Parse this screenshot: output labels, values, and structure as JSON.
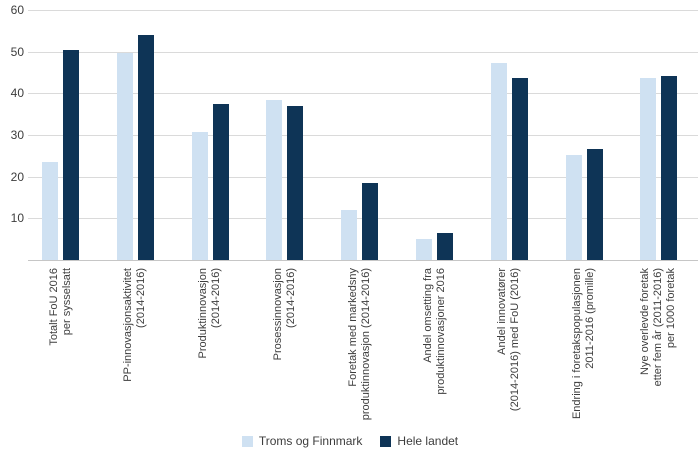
{
  "chart_data": {
    "type": "bar",
    "title": "",
    "xlabel": "",
    "ylabel": "",
    "ylim": [
      0,
      60
    ],
    "yticks": [
      10,
      20,
      30,
      40,
      50,
      60
    ],
    "grid": true,
    "legend_position": "bottom",
    "categories": [
      [
        "Totalt FoU 2016",
        "per sysselsatt"
      ],
      [
        "PP-innovasjonsaktivitet",
        "(2014-2016)"
      ],
      [
        "Produktinnovasjon",
        "(2014-2016)"
      ],
      [
        "Prosessinnovasjon",
        "(2014-2016)"
      ],
      [
        "Foretak med markedsny",
        "produktinnovasjon (2014-2016)"
      ],
      [
        "Andel omsetting fra",
        "produktinnovasjoner 2016"
      ],
      [
        "Andel innovatører",
        "(2014-2016) med FoU (2016)"
      ],
      [
        "Endring i foretakspopulasjonen",
        "2011-2016 (promille)"
      ],
      [
        "Nye overlevde foretak",
        "etter fem år (2011-2016)",
        "per 1000 foretak"
      ]
    ],
    "series": [
      {
        "name": "Troms og Finnmark",
        "color": "#cfe1f2",
        "values": [
          23.5,
          49.8,
          30.7,
          38.3,
          11.9,
          5.0,
          47.3,
          25.2,
          43.6
        ]
      },
      {
        "name": "Hele landet",
        "color": "#0e3456",
        "values": [
          50.4,
          53.9,
          37.4,
          37.0,
          18.6,
          6.4,
          43.8,
          26.6,
          44.2
        ]
      }
    ]
  },
  "colors": {
    "gridline": "#dadada",
    "axisline": "#c6c6c6",
    "text": "#3d3d3d",
    "background": "#ffffff"
  }
}
